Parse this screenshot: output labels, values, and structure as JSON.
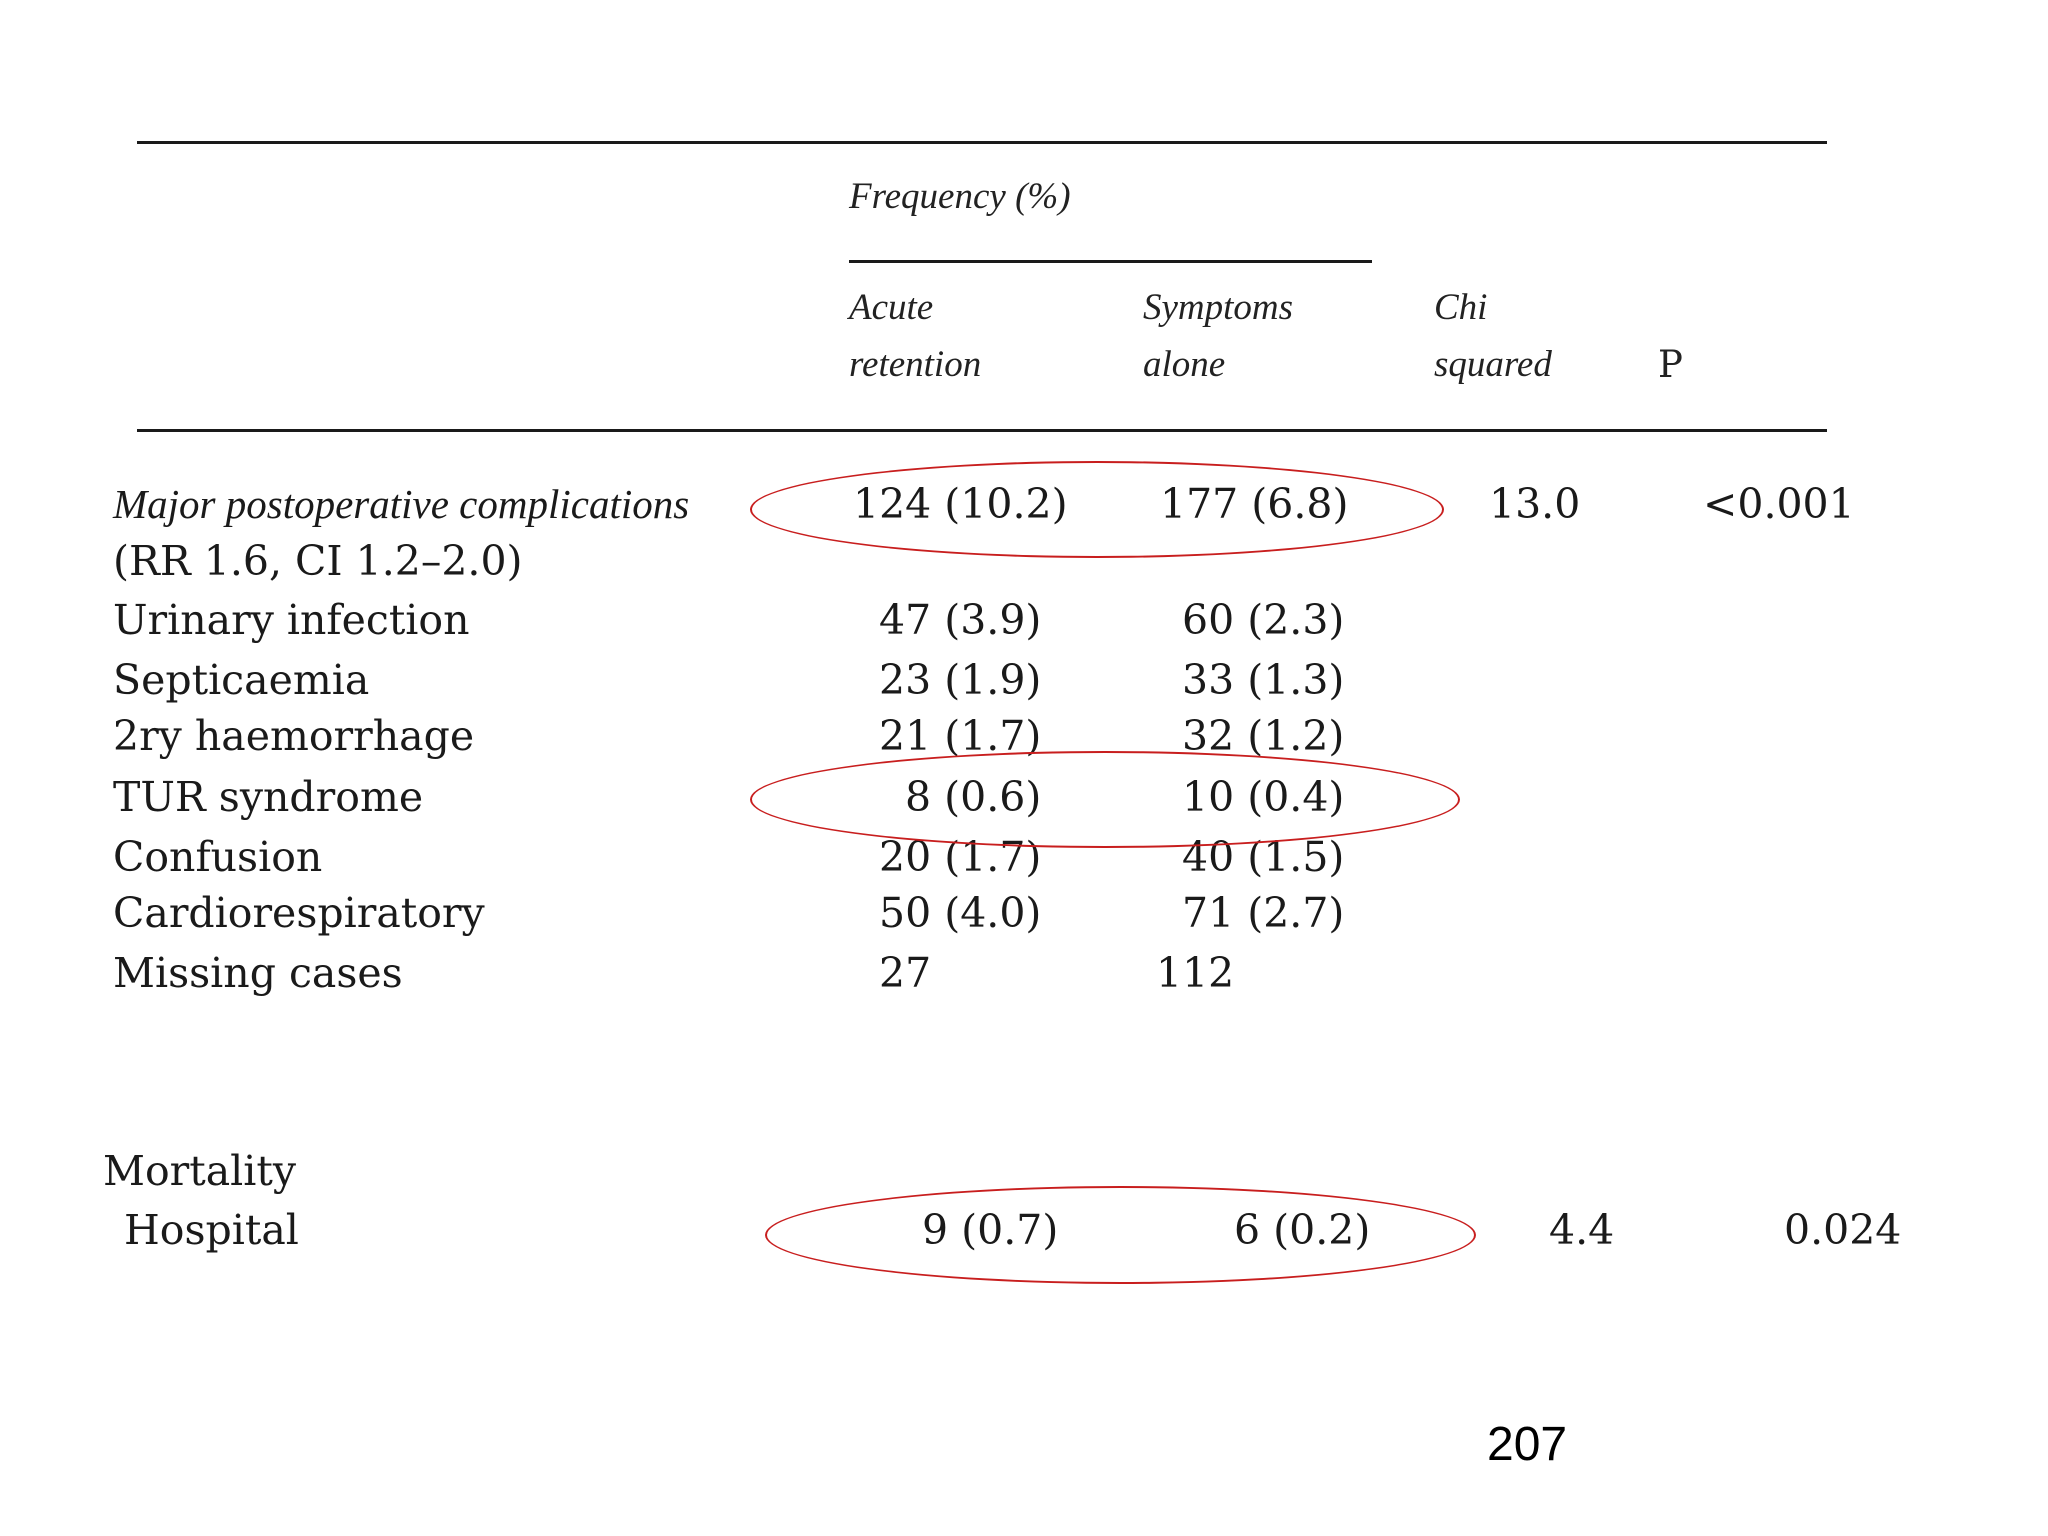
{
  "header": {
    "frequency_label": "Frequency (%)",
    "col_acute": [
      "Acute",
      "retention"
    ],
    "col_symptoms": [
      "Symptoms",
      "alone"
    ],
    "col_chi": [
      "Chi",
      "squared"
    ],
    "col_p": "P"
  },
  "rows": [
    {
      "label": "Major postoperative complications",
      "acute": "124 (10.2)",
      "symptoms": "177 (6.8)",
      "chi": "13.0",
      "p": "<0.001"
    },
    {
      "label": "(RR 1.6, CI 1.2–2.0)"
    },
    {
      "label": "Urinary infection",
      "acute": "47 (3.9)",
      "symptoms": "60 (2.3)"
    },
    {
      "label": "Septicaemia",
      "acute": "23 (1.9)",
      "symptoms": "33 (1.3)"
    },
    {
      "label": "2ry haemorrhage",
      "acute": "21 (1.7)",
      "symptoms": "32 (1.2)"
    },
    {
      "label": "TUR syndrome",
      "acute": "8 (0.6)",
      "symptoms": "10 (0.4)"
    },
    {
      "label": "Confusion",
      "acute": "20 (1.7)",
      "symptoms": "40 (1.5)"
    },
    {
      "label": "Cardiorespiratory",
      "acute": "50 (4.0)",
      "symptoms": "71 (2.7)"
    },
    {
      "label": "Missing cases",
      "acute": "27",
      "symptoms": "112"
    }
  ],
  "mortality": {
    "title": "Mortality",
    "row": {
      "label": "Hospital",
      "acute": "9 (0.7)",
      "symptoms": "6 (0.2)",
      "chi": "4.4",
      "p": "0.024"
    }
  },
  "slide_number": "207",
  "colors": {
    "highlight_oval": "#c81e1e",
    "rule": "#1a1a1a"
  }
}
